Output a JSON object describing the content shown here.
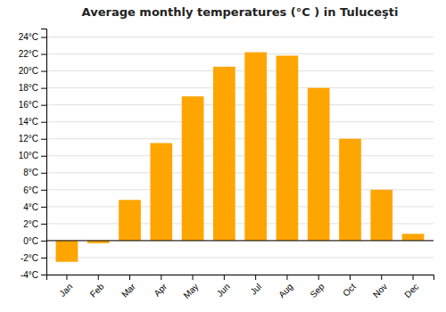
{
  "chart_data": {
    "type": "bar",
    "title": "Average monthly temperatures (°C ) in Tuluceşti",
    "categories": [
      "Jan",
      "Feb",
      "Mar",
      "Apr",
      "May",
      "Jun",
      "Jul",
      "Aug",
      "Sep",
      "Oct",
      "Nov",
      "Dec"
    ],
    "values": [
      -2.5,
      -0.3,
      4.8,
      11.5,
      17.0,
      20.5,
      22.2,
      21.8,
      18.0,
      12.0,
      6.0,
      0.8
    ],
    "color": "#FFA500",
    "ylim": [
      -4,
      25
    ],
    "yticks": [
      {
        "value": -4,
        "label": "-4°C"
      },
      {
        "value": -2,
        "label": "-2°C"
      },
      {
        "value": 0,
        "label": "0°C"
      },
      {
        "value": 2,
        "label": "2°C"
      },
      {
        "value": 4,
        "label": "4°C"
      },
      {
        "value": 6,
        "label": "6°C"
      },
      {
        "value": 8,
        "label": "8°C"
      },
      {
        "value": 10,
        "label": "10°C"
      },
      {
        "value": 12,
        "label": "12°C"
      },
      {
        "value": 14,
        "label": "14°C"
      },
      {
        "value": 16,
        "label": "16°C"
      },
      {
        "value": 18,
        "label": "18°C"
      },
      {
        "value": 20,
        "label": "20°C"
      },
      {
        "value": 22,
        "label": "22°C"
      },
      {
        "value": 24,
        "label": "24°C"
      }
    ],
    "grid": true
  }
}
